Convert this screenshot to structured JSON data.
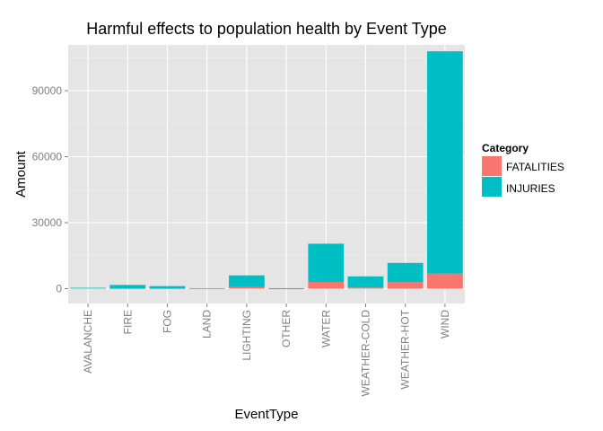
{
  "chart_data": {
    "type": "bar",
    "stacked": true,
    "title": "Harmful effects to population health by Event Type",
    "xlabel": "EventType",
    "ylabel": "Amount",
    "categories": [
      "AVALANCHE",
      "FIRE",
      "FOG",
      "LAND",
      "LIGHTING",
      "OTHER",
      "WATER",
      "WEATHER-COLD",
      "WEATHER-HOT",
      "WIND"
    ],
    "series": [
      {
        "name": "FATALITIES",
        "color": "#f8766d",
        "values": [
          225,
          90,
          80,
          40,
          820,
          20,
          3050,
          480,
          3000,
          6900
        ]
      },
      {
        "name": "INJURIES",
        "color": "#00bfc4",
        "values": [
          170,
          1620,
          1080,
          50,
          5230,
          190,
          17400,
          5120,
          8700,
          101000
        ]
      }
    ],
    "ylim": [
      0,
      108000
    ],
    "yticks": [
      0,
      30000,
      60000,
      90000
    ],
    "grid": true,
    "legend": {
      "title": "Category",
      "placement": "right"
    }
  }
}
